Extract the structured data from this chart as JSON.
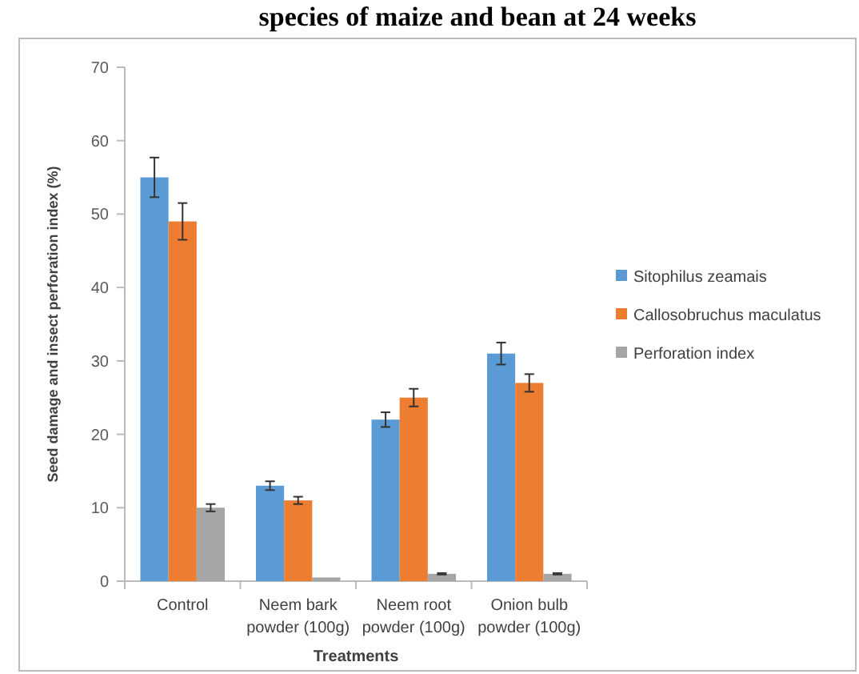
{
  "chart_data": {
    "type": "bar",
    "title": "species of maize and bean at 24 weeks",
    "xlabel": "Treatments",
    "ylabel": "Seed damage and insect perforation index (%)",
    "categories": [
      "Control",
      "Neem bark powder (100g)",
      "Neem root powder (100g)",
      "Onion bulb powder (100g)"
    ],
    "series": [
      {
        "name": "Sitophilus zeamais",
        "color": "#5b9bd5",
        "values": [
          55,
          13,
          22,
          31
        ],
        "errors": [
          2.7,
          0.6,
          1,
          1.5
        ]
      },
      {
        "name": "Callosobruchus maculatus",
        "color": "#ed7d31",
        "values": [
          49,
          11,
          25,
          27
        ],
        "errors": [
          2.5,
          0.5,
          1.2,
          1.2
        ]
      },
      {
        "name": "Perforation index",
        "color": "#a5a5a5",
        "values": [
          10,
          0.5,
          1,
          1
        ],
        "errors": [
          0.5,
          null,
          0.1,
          0.1
        ]
      }
    ],
    "ylim": [
      0,
      70
    ],
    "yticks": [
      0,
      10,
      20,
      30,
      40,
      50,
      60,
      70
    ],
    "legend": "right",
    "grid": false
  }
}
